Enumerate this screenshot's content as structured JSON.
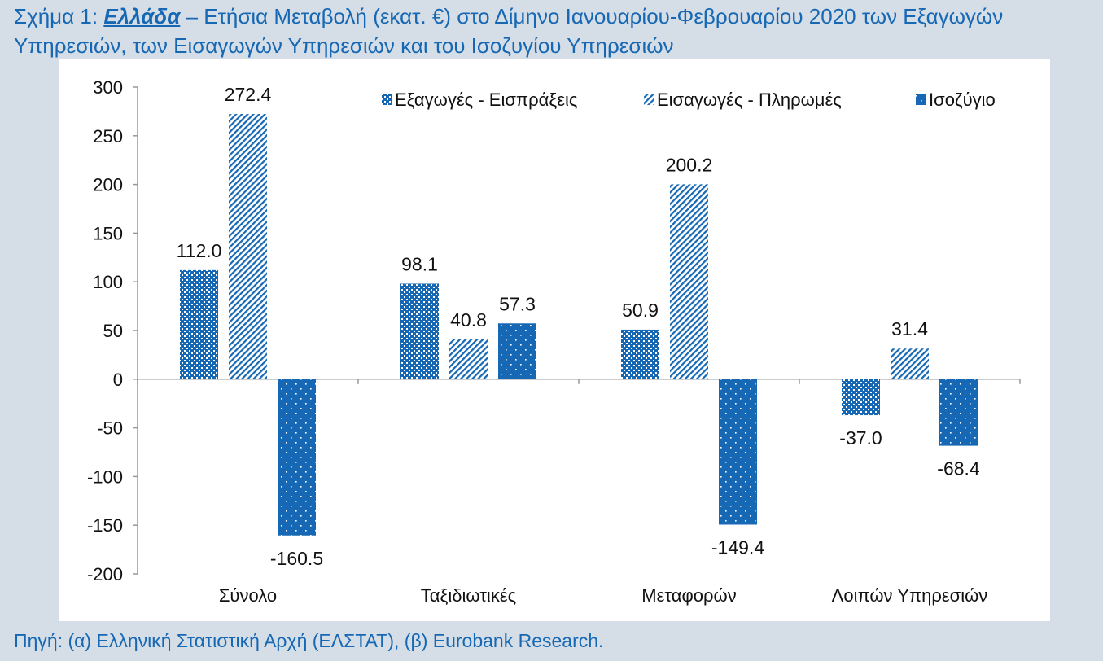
{
  "figure": {
    "title_prefix": "Σχήμα 1: ",
    "title_country": "Ελλάδα",
    "title_rest": " – Ετήσια Μεταβολή (εκατ. €) στο Δίμηνο Ιανουαρίου-Φεβρουαρίου 2020 των Εξαγωγών Υπηρεσιών, των Εισαγωγών Υπηρεσιών και του Ισοζυγίου Υπηρεσιών",
    "source": "Πηγή: (α) Ελληνική Στατιστική Αρχή (ΕΛΣΤΑΤ), (β) Eurobank Research."
  },
  "chart_data": {
    "type": "bar",
    "categories": [
      "Σύνολο",
      "Ταξιδιωτικές",
      "Μεταφορών",
      "Λοιπών Υπηρεσιών"
    ],
    "series": [
      {
        "name": "Εξαγωγές - Εισπράξεις",
        "values": [
          112.0,
          98.1,
          50.9,
          -37.0
        ],
        "color": "#1668b4",
        "pattern": "checker"
      },
      {
        "name": "Εισαγωγές - Πληρωμές",
        "values": [
          272.4,
          40.8,
          200.2,
          31.4
        ],
        "color": "#1668b4",
        "pattern": "diagonal"
      },
      {
        "name": "Ισοζύγιο",
        "values": [
          -160.5,
          57.3,
          -149.4,
          -68.4
        ],
        "color": "#1668b4",
        "pattern": "dotted"
      }
    ],
    "data_labels": [
      [
        "112.0",
        "98.1",
        "50.9",
        "-37.0"
      ],
      [
        "272.4",
        "40.8",
        "200.2",
        "31.4"
      ],
      [
        "-160.5",
        "57.3",
        "-149.4",
        "-68.4"
      ]
    ],
    "yticks": [
      "300",
      "250",
      "200",
      "150",
      "100",
      "50",
      "0",
      "-50",
      "-100",
      "-150",
      "-200"
    ],
    "ylim": [
      -200,
      300
    ],
    "grid": false,
    "legend": "top-right"
  }
}
